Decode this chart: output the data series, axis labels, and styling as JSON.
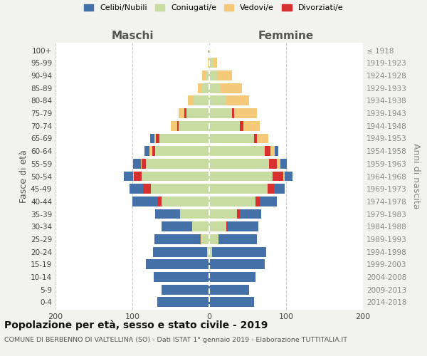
{
  "age_groups": [
    "0-4",
    "5-9",
    "10-14",
    "15-19",
    "20-24",
    "25-29",
    "30-34",
    "35-39",
    "40-44",
    "45-49",
    "50-54",
    "55-59",
    "60-64",
    "65-69",
    "70-74",
    "75-79",
    "80-84",
    "85-89",
    "90-94",
    "95-99",
    "100+"
  ],
  "birth_years": [
    "2014-2018",
    "2009-2013",
    "2004-2008",
    "1999-2003",
    "1994-1998",
    "1989-1993",
    "1984-1988",
    "1979-1983",
    "1974-1978",
    "1969-1973",
    "1964-1968",
    "1959-1963",
    "1954-1958",
    "1949-1953",
    "1944-1948",
    "1939-1943",
    "1934-1938",
    "1929-1933",
    "1924-1928",
    "1919-1923",
    "≤ 1918"
  ],
  "colors": {
    "celibi": "#4472A8",
    "coniugati": "#C8DBA0",
    "vedovi": "#F5C97A",
    "divorziati": "#D63030"
  },
  "maschi": {
    "celibi": [
      68,
      62,
      72,
      82,
      70,
      60,
      40,
      32,
      32,
      18,
      12,
      10,
      6,
      6,
      0,
      0,
      0,
      0,
      0,
      0,
      1
    ],
    "coniugati": [
      0,
      0,
      0,
      0,
      3,
      10,
      22,
      38,
      62,
      76,
      88,
      82,
      70,
      65,
      40,
      30,
      20,
      10,
      5,
      1,
      0
    ],
    "vedovi": [
      0,
      0,
      0,
      0,
      0,
      1,
      0,
      0,
      0,
      0,
      1,
      1,
      4,
      2,
      8,
      8,
      8,
      5,
      4,
      1,
      0
    ],
    "divorziati": [
      0,
      0,
      0,
      0,
      0,
      0,
      0,
      0,
      6,
      10,
      10,
      6,
      4,
      4,
      2,
      2,
      0,
      0,
      0,
      0,
      0
    ]
  },
  "femmine": {
    "nubili": [
      58,
      52,
      60,
      72,
      70,
      50,
      40,
      28,
      22,
      14,
      10,
      8,
      5,
      0,
      0,
      0,
      0,
      0,
      0,
      0,
      0
    ],
    "coniugate": [
      0,
      0,
      0,
      0,
      4,
      12,
      22,
      36,
      60,
      76,
      82,
      78,
      72,
      58,
      40,
      30,
      22,
      15,
      10,
      5,
      0
    ],
    "vedove": [
      0,
      0,
      0,
      0,
      0,
      0,
      0,
      0,
      0,
      0,
      2,
      5,
      5,
      15,
      22,
      30,
      30,
      28,
      20,
      5,
      1
    ],
    "divorziate": [
      0,
      0,
      0,
      0,
      0,
      0,
      2,
      4,
      6,
      8,
      14,
      10,
      8,
      4,
      4,
      2,
      0,
      0,
      0,
      0,
      0
    ]
  },
  "title": "Popolazione per età, sesso e stato civile - 2019",
  "subtitle": "COMUNE DI BERBENNO DI VALTELLINA (SO) - Dati ISTAT 1° gennaio 2019 - Elaborazione TUTTITALIA.IT",
  "xlabel_left": "Maschi",
  "xlabel_right": "Femmine",
  "ylabel_left": "Fasce di età",
  "ylabel_right": "Anni di nascita",
  "xlim": 200,
  "legend_labels": [
    "Celibi/Nubili",
    "Coniugati/e",
    "Vedovi/e",
    "Divorziati/e"
  ],
  "bg_color": "#F2F2EE",
  "bar_bg": "#FFFFFF",
  "grid_color": "#CCCCCC"
}
